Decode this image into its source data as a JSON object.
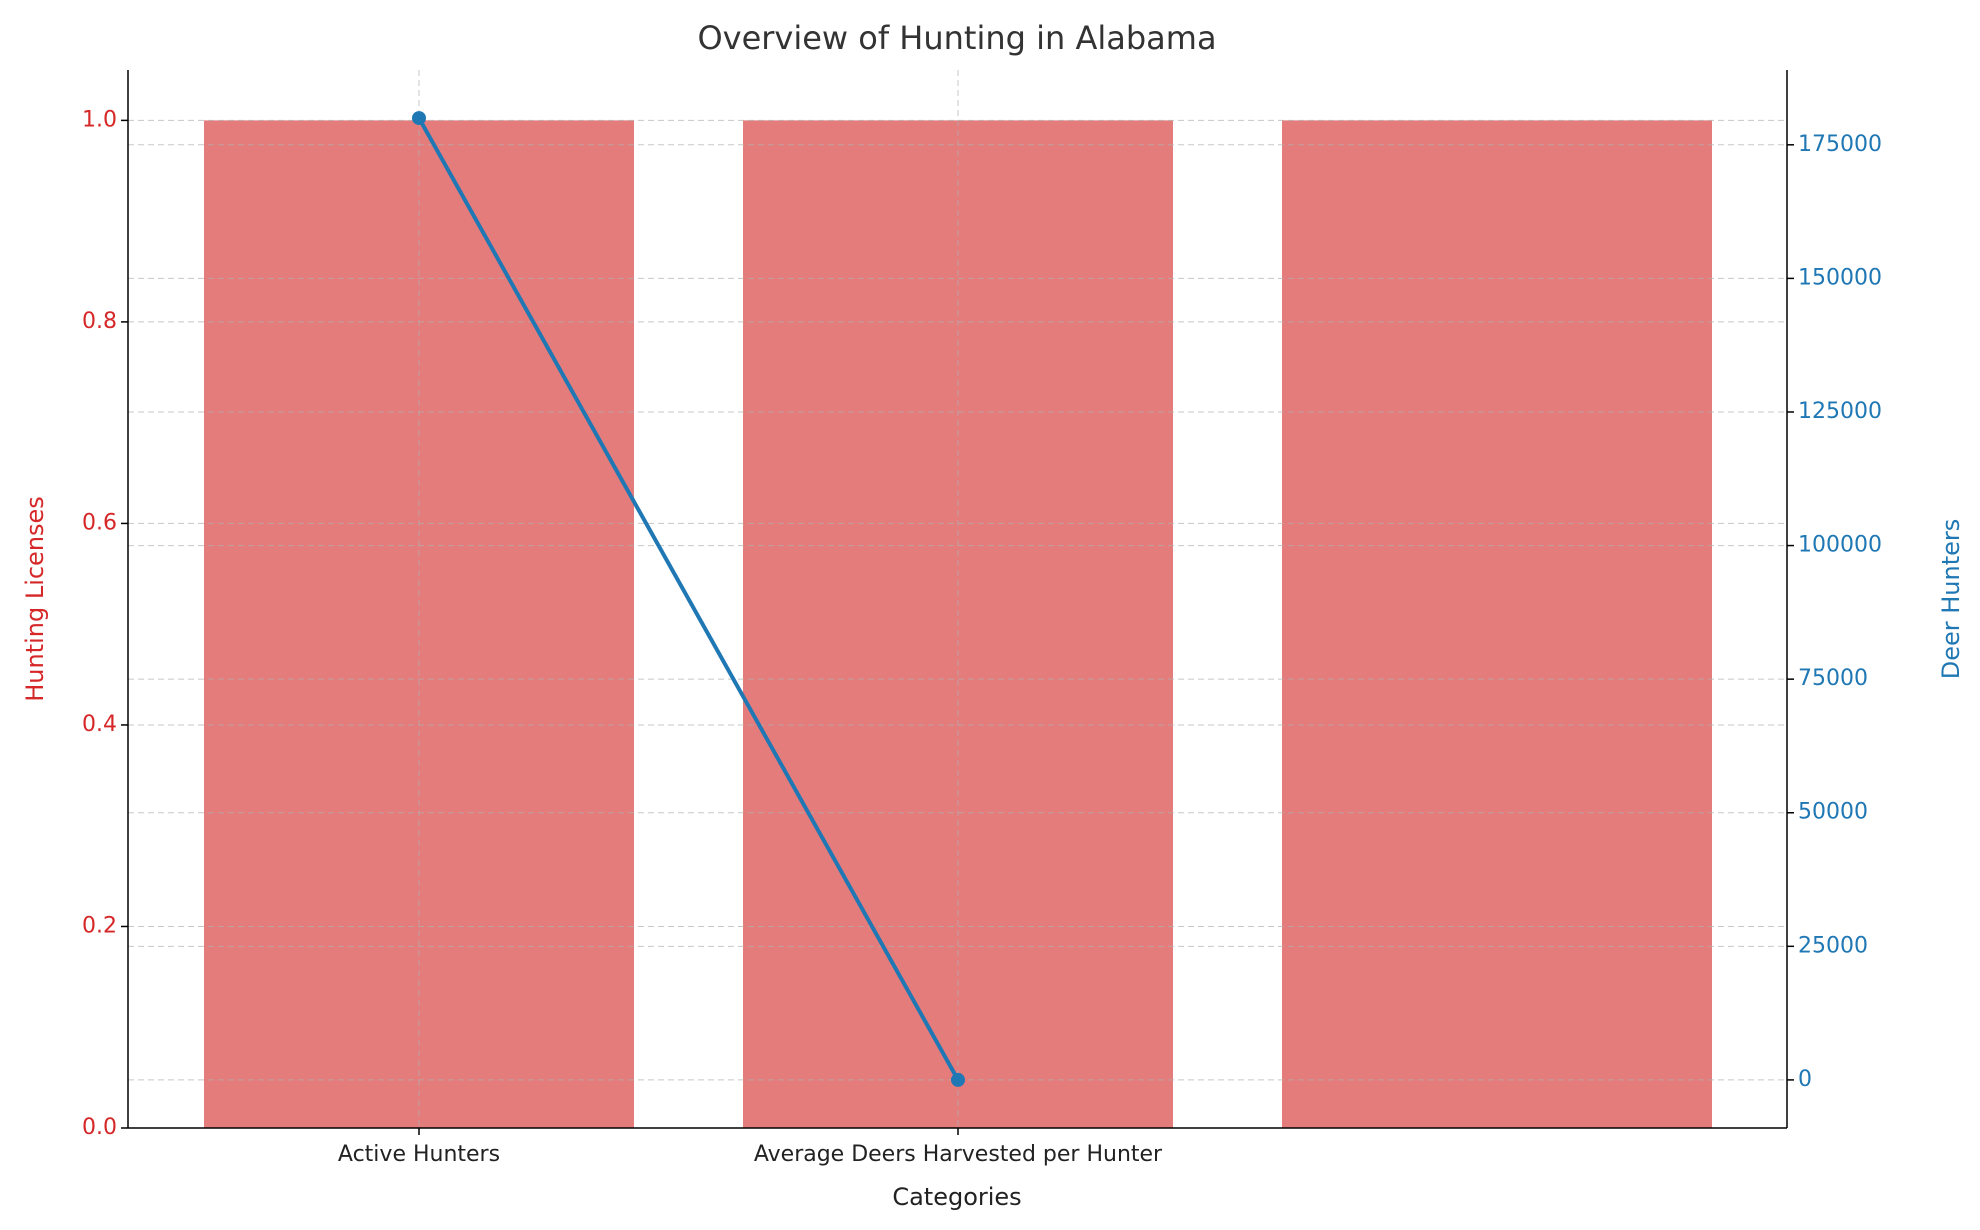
{
  "chart_data": {
    "type": "bar",
    "title": "Overview of Hunting in Alabama",
    "xlabel": "Categories",
    "ylabel": "Hunting Licenses",
    "y2label": "Deer Hunters",
    "categories": [
      "Active Hunters",
      "Average Deers Harvested per Hunter",
      null
    ],
    "series": [
      {
        "type": "bar",
        "color": "#e57c7c",
        "values": [
          1,
          1,
          1
        ]
      },
      {
        "type": "line",
        "axis": "y2",
        "color": "#1f77b4",
        "values": [
          180000,
          0,
          null
        ]
      }
    ],
    "ylim": [
      0,
      1.05
    ],
    "yticks": [
      {
        "value": 0,
        "label": "0.0"
      },
      0.2,
      0.4,
      0.6,
      0.8,
      {
        "value": 1,
        "label": "1.0"
      }
    ],
    "y2lim": [
      -9000,
      189000
    ],
    "y2ticks": [
      0,
      25000,
      50000,
      75000,
      100000,
      125000,
      150000,
      175000
    ],
    "ylabel_color": "#d62728",
    "y2label_color": "#1f77b4",
    "grid": true
  }
}
